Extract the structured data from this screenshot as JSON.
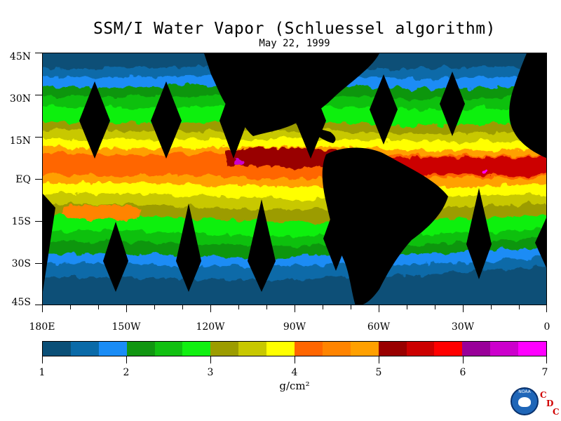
{
  "figure": {
    "title": "SSM/I Water Vapor (Schluessel algorithm)",
    "date": "May 22, 1999"
  },
  "map": {
    "latitude_labels": [
      "45N",
      "30N",
      "15N",
      "EQ",
      "15S",
      "30S",
      "45S"
    ],
    "latitude_values": [
      45,
      30,
      15,
      0,
      -15,
      -30,
      -45
    ],
    "longitude_labels": [
      "180E",
      "150W",
      "120W",
      "90W",
      "60W",
      "30W",
      "0"
    ],
    "longitude_values": [
      -180,
      -150,
      -120,
      -90,
      -60,
      -30,
      0
    ],
    "extent": {
      "lon": [
        -180,
        0
      ],
      "lat": [
        -45,
        45
      ]
    }
  },
  "colorbar": {
    "unit": "g/cm²",
    "range": [
      1,
      7
    ],
    "tick_labels": [
      "1",
      "2",
      "3",
      "4",
      "5",
      "6",
      "7"
    ],
    "colors": [
      "#0a4f77",
      "#0a6aa8",
      "#1a8cf5",
      "#119611",
      "#11c011",
      "#11f011",
      "#9c9c00",
      "#c8c800",
      "#ffff00",
      "#ff6600",
      "#ff8400",
      "#ffa000",
      "#990000",
      "#cc0000",
      "#ff0000",
      "#990099",
      "#cc00cc",
      "#ff00ff"
    ],
    "land_color": "#000000"
  },
  "credit": {
    "logo_text": "NOAA",
    "letters": [
      "C",
      "D",
      "C"
    ]
  }
}
